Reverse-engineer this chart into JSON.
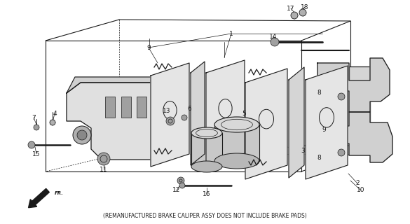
{
  "footer_text": "(REMANUFACTURED BRAKE CALIPER ASSY DOES NOT INCLUDE BRAKE PADS)",
  "bg_color": "#ffffff",
  "line_color": "#1a1a1a",
  "figsize": [
    5.85,
    3.2
  ],
  "dpi": 100
}
